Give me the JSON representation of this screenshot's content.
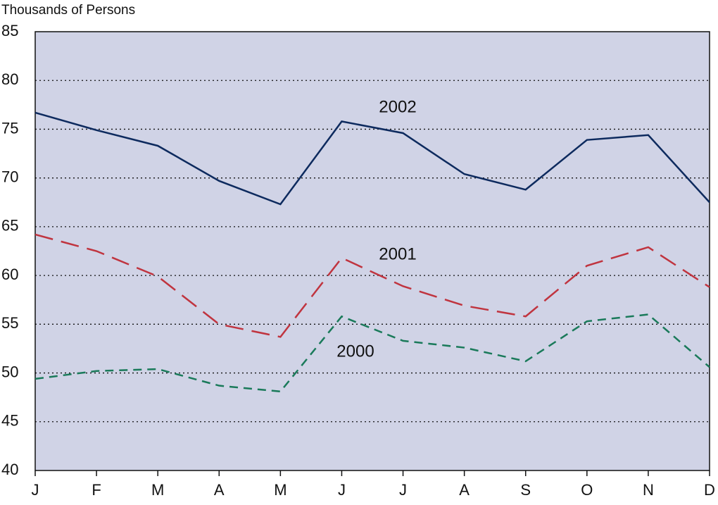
{
  "chart_data": {
    "type": "line",
    "y_axis_label": "Thousands of Persons",
    "categories": [
      "J",
      "F",
      "M",
      "A",
      "M",
      "J",
      "J",
      "A",
      "S",
      "O",
      "N",
      "D"
    ],
    "series": [
      {
        "name": "2002",
        "color": "#0d2a5e",
        "dash": "solid",
        "values": [
          76.7,
          74.9,
          73.3,
          69.7,
          67.3,
          75.8,
          74.6,
          70.4,
          68.8,
          73.9,
          74.4,
          67.5
        ]
      },
      {
        "name": "2001",
        "color": "#c0343f",
        "dash": "long",
        "values": [
          64.2,
          62.5,
          59.9,
          55.0,
          53.7,
          61.8,
          58.9,
          56.9,
          55.8,
          61.0,
          62.9,
          58.8
        ]
      },
      {
        "name": "2000",
        "color": "#1a7a5a",
        "dash": "short",
        "values": [
          49.4,
          50.2,
          50.4,
          48.7,
          48.1,
          55.8,
          53.3,
          52.6,
          51.2,
          55.3,
          56.0,
          50.6
        ]
      }
    ],
    "ylim": [
      40,
      85
    ],
    "yticks": [
      40,
      45,
      50,
      55,
      60,
      65,
      70,
      75,
      80,
      85
    ],
    "grid": true
  }
}
